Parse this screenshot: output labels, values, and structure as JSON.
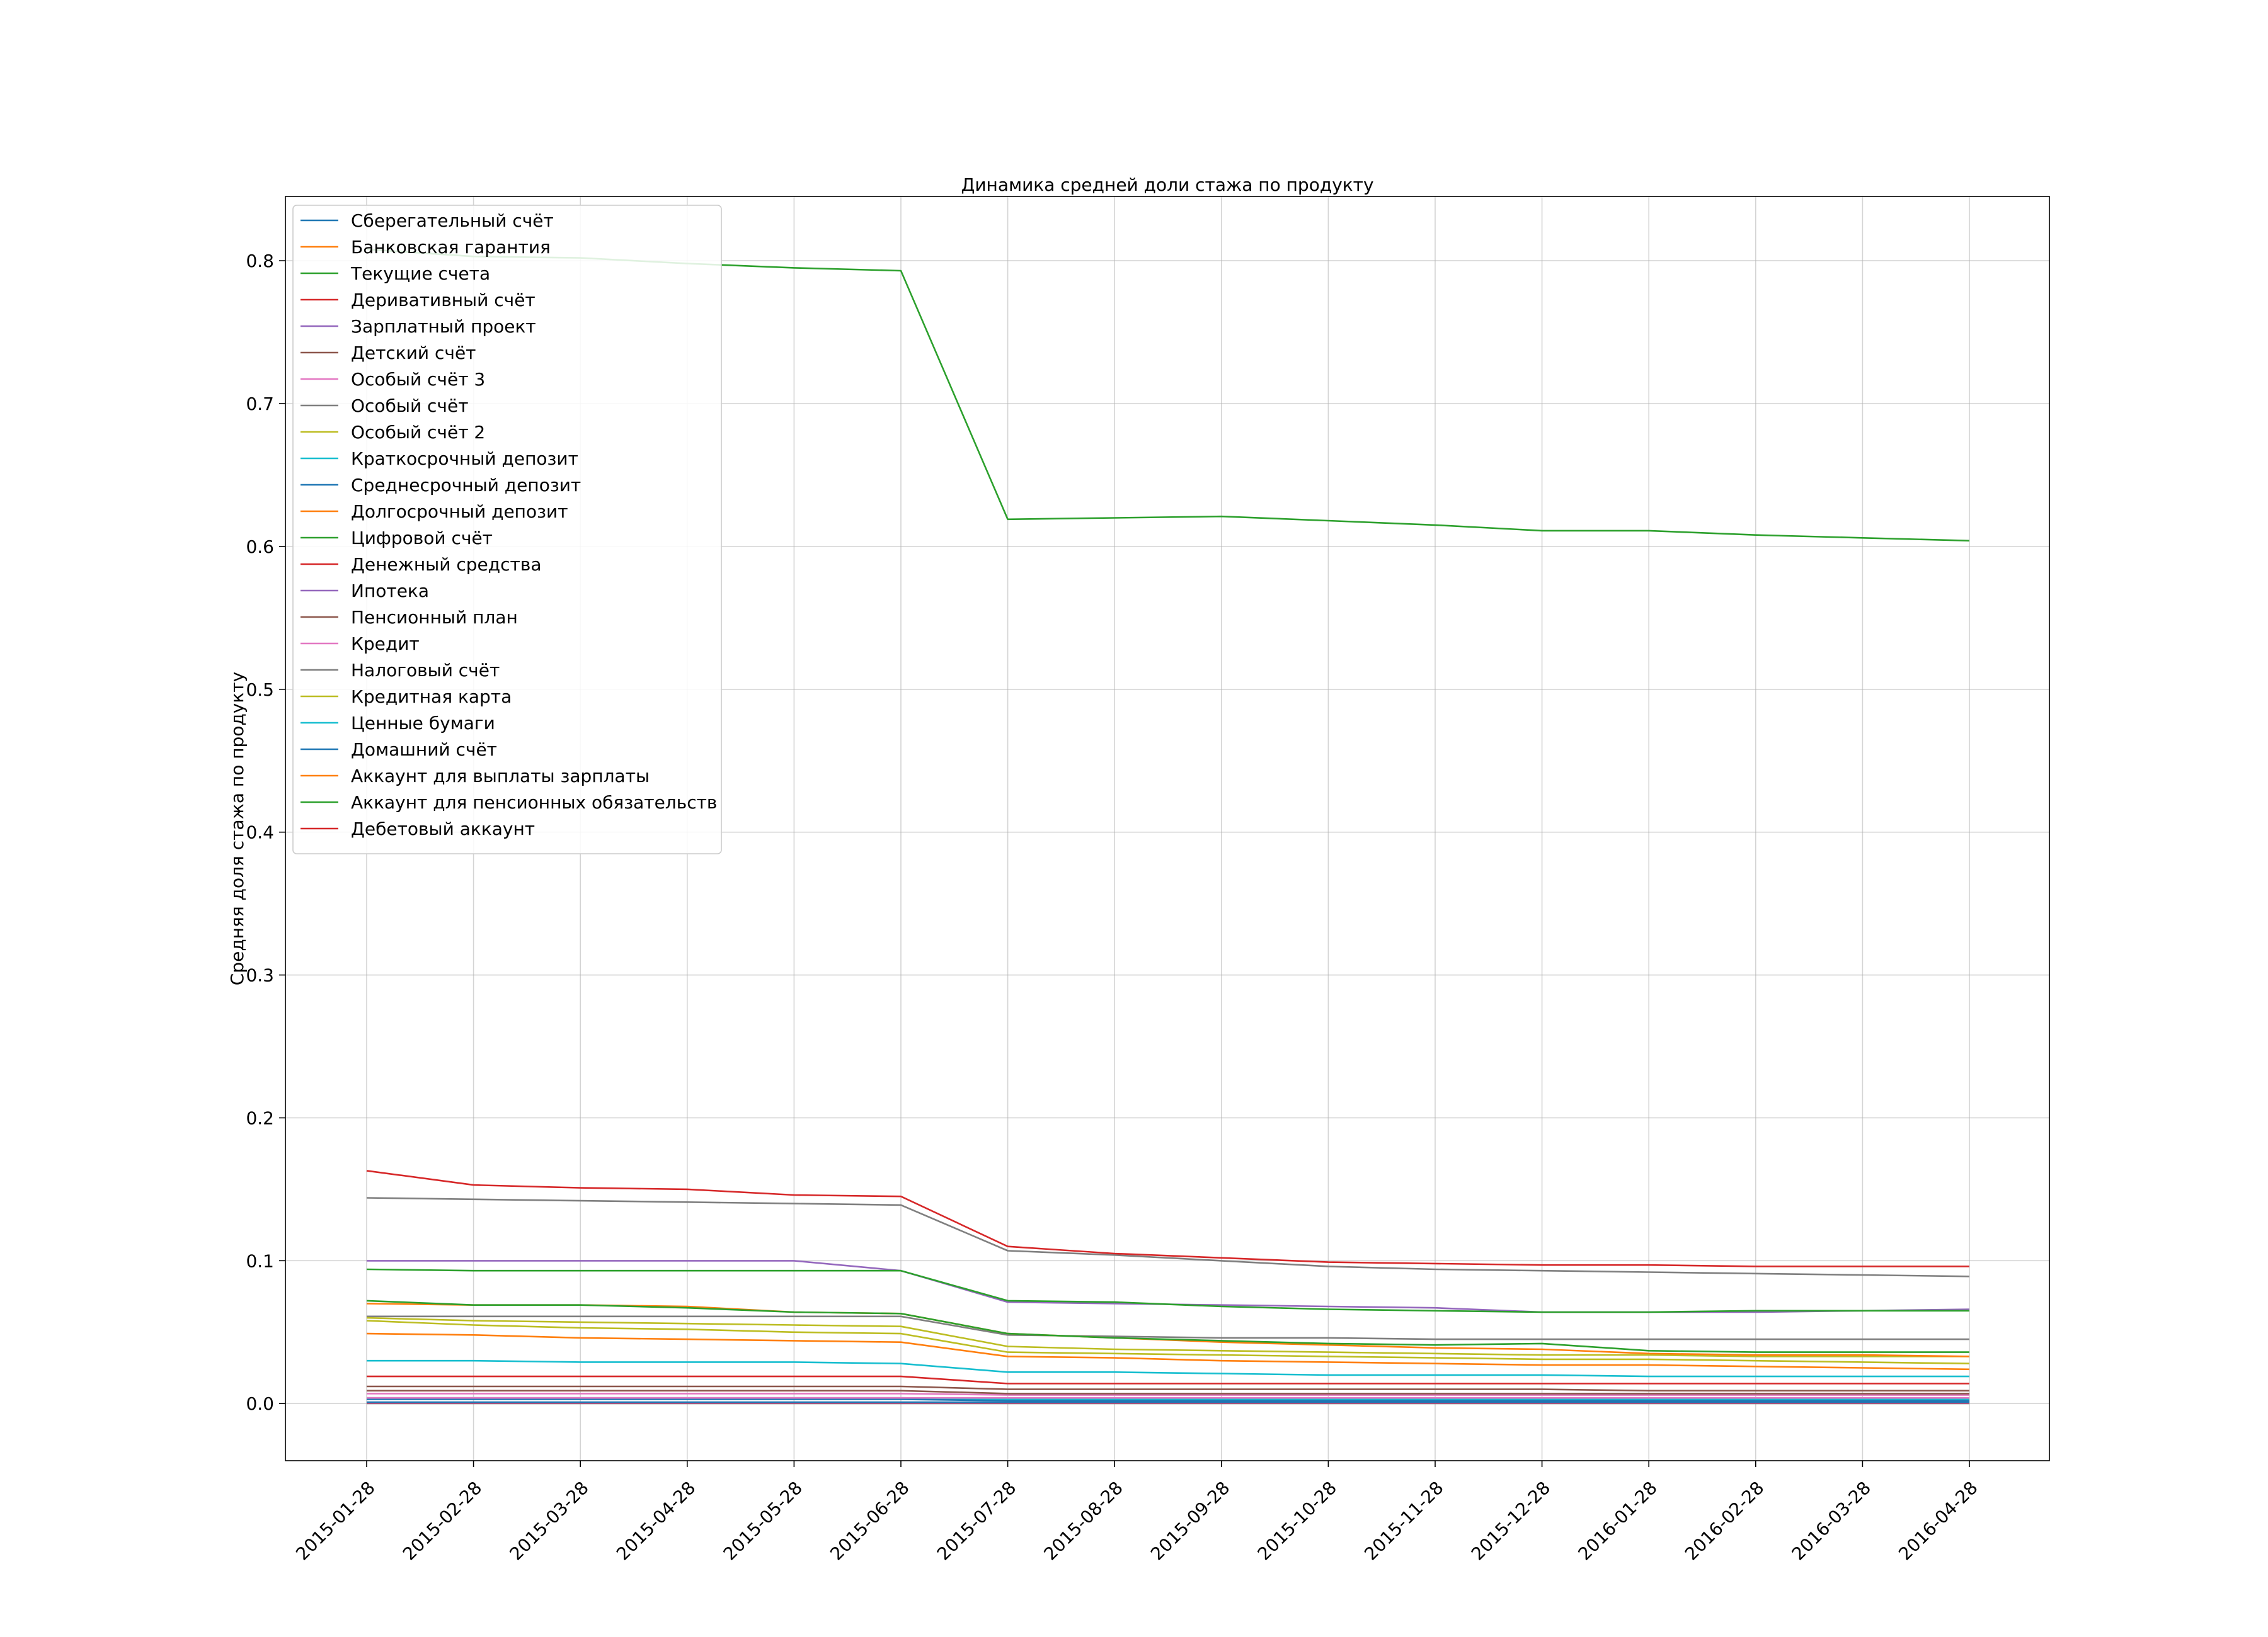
{
  "chart_data": {
    "type": "line",
    "title": "Динамика средней доли стажа по продукту",
    "xlabel": "",
    "ylabel": "Средняя доля стажа по продукту",
    "categories": [
      "2015-01-28",
      "2015-02-28",
      "2015-03-28",
      "2015-04-28",
      "2015-05-28",
      "2015-06-28",
      "2015-07-28",
      "2015-08-28",
      "2015-09-28",
      "2015-10-28",
      "2015-11-28",
      "2015-12-28",
      "2016-01-28",
      "2016-02-28",
      "2016-03-28",
      "2016-04-28"
    ],
    "ylim": [
      -0.04,
      0.845
    ],
    "yticks": [
      "0.0",
      "0.1",
      "0.2",
      "0.3",
      "0.4",
      "0.5",
      "0.6",
      "0.7",
      "0.8"
    ],
    "grid": true,
    "legend_position": "top-left",
    "series": [
      {
        "name": "Сберегательный счёт",
        "color": "#1f77b4",
        "values": [
          0.0001,
          0.0001,
          0.0001,
          0.0001,
          0.0001,
          0.0001,
          0.0001,
          0.0001,
          0.0001,
          0.0001,
          0.0001,
          0.0001,
          0.0001,
          0.0001,
          0.0001,
          0.0001
        ]
      },
      {
        "name": "Банковская гарантия",
        "color": "#ff7f0e",
        "values": [
          0.0002,
          0.0002,
          0.0002,
          0.0002,
          0.0002,
          0.0002,
          0.0002,
          0.0002,
          0.0002,
          0.0002,
          0.0002,
          0.0002,
          0.0002,
          0.0002,
          0.0002,
          0.0002
        ]
      },
      {
        "name": "Текущие счета",
        "color": "#2ca02c",
        "values": [
          0.808,
          0.803,
          0.802,
          0.798,
          0.795,
          0.793,
          0.619,
          0.62,
          0.621,
          0.618,
          0.615,
          0.611,
          0.611,
          0.608,
          0.606,
          0.604
        ]
      },
      {
        "name": "Деривативный счёт",
        "color": "#d62728",
        "values": [
          0.0003,
          0.0003,
          0.0003,
          0.0003,
          0.0003,
          0.0003,
          0.0003,
          0.0003,
          0.0003,
          0.0003,
          0.0003,
          0.0003,
          0.0003,
          0.0003,
          0.0003,
          0.0003
        ]
      },
      {
        "name": "Зарплатный проект",
        "color": "#9467bd",
        "values": [
          0.1,
          0.1,
          0.1,
          0.1,
          0.1,
          0.093,
          0.071,
          0.07,
          0.069,
          0.068,
          0.067,
          0.064,
          0.064,
          0.064,
          0.065,
          0.066
        ]
      },
      {
        "name": "Детский счёт",
        "color": "#8c564b",
        "values": [
          0.012,
          0.012,
          0.012,
          0.012,
          0.012,
          0.012,
          0.01,
          0.01,
          0.01,
          0.01,
          0.01,
          0.01,
          0.009,
          0.009,
          0.009,
          0.009
        ]
      },
      {
        "name": "Особый счёт 3",
        "color": "#e377c2",
        "values": [
          0.007,
          0.007,
          0.007,
          0.007,
          0.007,
          0.007,
          0.006,
          0.006,
          0.006,
          0.006,
          0.006,
          0.006,
          0.006,
          0.006,
          0.006,
          0.006
        ]
      },
      {
        "name": "Особый счёт",
        "color": "#7f7f7f",
        "values": [
          0.061,
          0.061,
          0.061,
          0.061,
          0.061,
          0.061,
          0.048,
          0.047,
          0.046,
          0.046,
          0.045,
          0.045,
          0.045,
          0.045,
          0.045,
          0.045
        ]
      },
      {
        "name": "Особый счёт 2",
        "color": "#bcbd22",
        "values": [
          0.06,
          0.058,
          0.057,
          0.056,
          0.055,
          0.054,
          0.04,
          0.038,
          0.037,
          0.036,
          0.035,
          0.034,
          0.034,
          0.033,
          0.033,
          0.033
        ]
      },
      {
        "name": "Краткосрочный депозит",
        "color": "#17becf",
        "values": [
          0.004,
          0.004,
          0.004,
          0.004,
          0.004,
          0.004,
          0.003,
          0.003,
          0.003,
          0.003,
          0.003,
          0.003,
          0.003,
          0.003,
          0.003,
          0.003
        ]
      },
      {
        "name": "Среднесрочный депозит",
        "color": "#1f77b4",
        "values": [
          0.003,
          0.003,
          0.003,
          0.003,
          0.003,
          0.003,
          0.002,
          0.002,
          0.002,
          0.002,
          0.002,
          0.002,
          0.002,
          0.002,
          0.002,
          0.002
        ]
      },
      {
        "name": "Долгосрочный депозит",
        "color": "#ff7f0e",
        "values": [
          0.049,
          0.048,
          0.046,
          0.045,
          0.044,
          0.043,
          0.033,
          0.032,
          0.03,
          0.029,
          0.028,
          0.027,
          0.027,
          0.026,
          0.025,
          0.024
        ]
      },
      {
        "name": "Цифровой счёт",
        "color": "#2ca02c",
        "values": [
          0.094,
          0.093,
          0.093,
          0.093,
          0.093,
          0.093,
          0.072,
          0.071,
          0.068,
          0.066,
          0.065,
          0.064,
          0.064,
          0.065,
          0.065,
          0.065
        ]
      },
      {
        "name": "Денежный средства",
        "color": "#d62728",
        "values": [
          0.0004,
          0.0004,
          0.0004,
          0.0004,
          0.0004,
          0.0004,
          0.0004,
          0.0004,
          0.0004,
          0.0004,
          0.0004,
          0.0004,
          0.0004,
          0.0004,
          0.0004,
          0.0004
        ]
      },
      {
        "name": "Ипотека",
        "color": "#9467bd",
        "values": [
          0.0005,
          0.0005,
          0.0005,
          0.0005,
          0.0005,
          0.0005,
          0.0005,
          0.0005,
          0.0005,
          0.0005,
          0.0005,
          0.0005,
          0.0005,
          0.0005,
          0.0005,
          0.0005
        ]
      },
      {
        "name": "Пенсионный план",
        "color": "#8c564b",
        "values": [
          0.009,
          0.009,
          0.009,
          0.009,
          0.009,
          0.009,
          0.007,
          0.007,
          0.007,
          0.007,
          0.007,
          0.007,
          0.007,
          0.007,
          0.007,
          0.007
        ]
      },
      {
        "name": "Кредит",
        "color": "#e377c2",
        "values": [
          0.004,
          0.004,
          0.004,
          0.004,
          0.004,
          0.004,
          0.004,
          0.004,
          0.004,
          0.004,
          0.004,
          0.004,
          0.004,
          0.004,
          0.004,
          0.004
        ]
      },
      {
        "name": "Налоговый счёт",
        "color": "#7f7f7f",
        "values": [
          0.144,
          0.143,
          0.142,
          0.141,
          0.14,
          0.139,
          0.107,
          0.104,
          0.1,
          0.096,
          0.094,
          0.093,
          0.092,
          0.091,
          0.09,
          0.089
        ]
      },
      {
        "name": "Кредитная карта",
        "color": "#bcbd22",
        "values": [
          0.058,
          0.055,
          0.053,
          0.052,
          0.05,
          0.049,
          0.036,
          0.035,
          0.034,
          0.033,
          0.032,
          0.031,
          0.031,
          0.03,
          0.029,
          0.028
        ]
      },
      {
        "name": "Ценные бумаги",
        "color": "#17becf",
        "values": [
          0.03,
          0.03,
          0.029,
          0.029,
          0.029,
          0.028,
          0.022,
          0.022,
          0.021,
          0.02,
          0.02,
          0.02,
          0.019,
          0.019,
          0.019,
          0.019
        ]
      },
      {
        "name": "Домашний счёт",
        "color": "#1f77b4",
        "values": [
          0.001,
          0.001,
          0.001,
          0.001,
          0.001,
          0.001,
          0.001,
          0.001,
          0.001,
          0.001,
          0.001,
          0.001,
          0.001,
          0.001,
          0.001,
          0.001
        ]
      },
      {
        "name": "Аккаунт для выплаты зарплаты",
        "color": "#ff7f0e",
        "values": [
          0.07,
          0.069,
          0.069,
          0.068,
          0.064,
          0.063,
          0.049,
          0.046,
          0.043,
          0.041,
          0.039,
          0.038,
          0.035,
          0.034,
          0.034,
          0.033
        ]
      },
      {
        "name": "Аккаунт для пенсионных обязательств",
        "color": "#2ca02c",
        "values": [
          0.072,
          0.069,
          0.069,
          0.067,
          0.064,
          0.063,
          0.049,
          0.046,
          0.044,
          0.042,
          0.041,
          0.042,
          0.037,
          0.036,
          0.036,
          0.036
        ]
      },
      {
        "name": "Дебетовый аккаунт",
        "color": "#d62728",
        "values": [
          0.163,
          0.153,
          0.151,
          0.15,
          0.146,
          0.145,
          0.11,
          0.105,
          0.102,
          0.099,
          0.098,
          0.097,
          0.097,
          0.096,
          0.096,
          0.096
        ]
      },
      {
        "name": "",
        "color": "#d62728",
        "values": [
          0.019,
          0.019,
          0.019,
          0.019,
          0.019,
          0.019,
          0.014,
          0.014,
          0.014,
          0.014,
          0.014,
          0.014,
          0.014,
          0.014,
          0.014,
          0.014
        ]
      }
    ]
  }
}
